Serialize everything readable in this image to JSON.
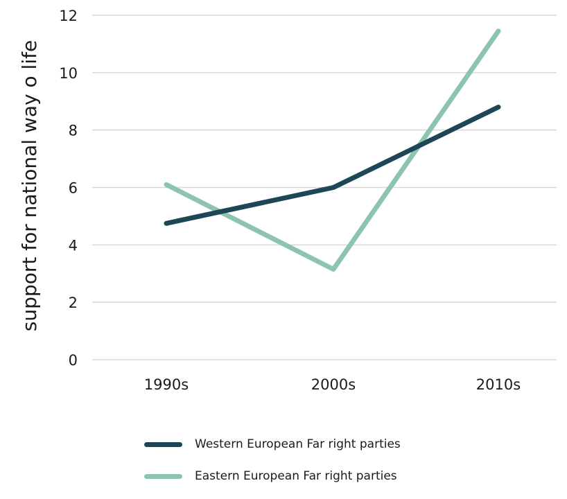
{
  "chart_data": {
    "type": "line",
    "title": "",
    "xlabel": "",
    "ylabel": "support for national way o life",
    "categories": [
      "1990s",
      "2000s",
      "2010s"
    ],
    "ylim": [
      0,
      12
    ],
    "yticks": [
      0,
      2,
      4,
      6,
      8,
      10,
      12
    ],
    "grid": "horizontal",
    "legend_position": "bottom",
    "series": [
      {
        "name": "Western European Far right parties",
        "values": [
          4.75,
          6.0,
          8.8
        ],
        "color": "#1d4756"
      },
      {
        "name": "Eastern European Far right parties",
        "values": [
          6.1,
          3.15,
          11.45
        ],
        "color": "#8dc4b1"
      }
    ]
  }
}
